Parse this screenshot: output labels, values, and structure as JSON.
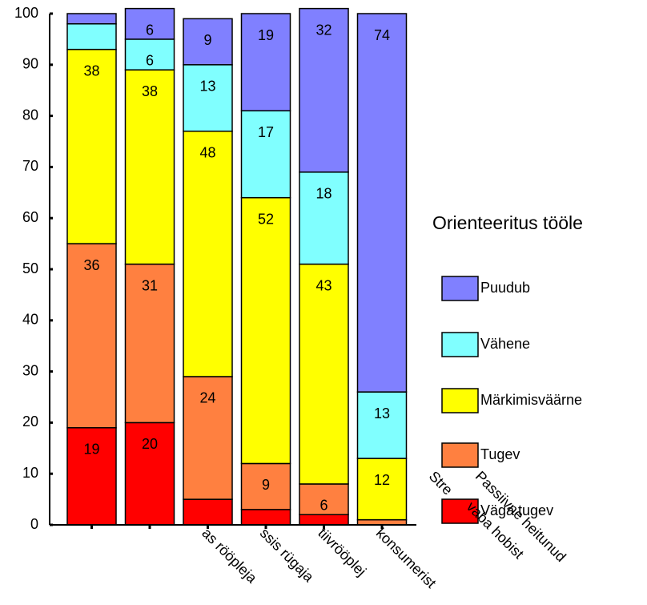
{
  "chart_data": {
    "type": "stacked_bar",
    "categories": [
      null,
      null,
      "as rööpleja",
      "ssis rügaja",
      "tiivrööplej",
      "konsumerist"
    ],
    "series": [
      {
        "name": "Väga tugev",
        "color": "#ff0000",
        "values": [
          19,
          20,
          5,
          3,
          2,
          0
        ],
        "value_labels": [
          "19",
          "20",
          null,
          null,
          null,
          null
        ]
      },
      {
        "name": "Tugev",
        "color": "#ff8040",
        "values": [
          36,
          31,
          24,
          9,
          6,
          1
        ],
        "value_labels": [
          "36",
          "31",
          "24",
          "9",
          "6",
          null
        ]
      },
      {
        "name": "Märkimisväärne",
        "color": "#ffff00",
        "values": [
          38,
          38,
          48,
          52,
          43,
          12
        ],
        "value_labels": [
          "38",
          "38",
          "48",
          "52",
          "43",
          "12"
        ]
      },
      {
        "name": "Vähene",
        "color": "#80ffff",
        "values": [
          5,
          6,
          13,
          17,
          18,
          13
        ],
        "value_labels": [
          null,
          "6",
          "13",
          "17",
          "18",
          "13"
        ]
      },
      {
        "name": "Puudub",
        "color": "#8080ff",
        "values": [
          2,
          6,
          9,
          19,
          32,
          74
        ],
        "value_labels": [
          null,
          "6",
          "9",
          "19",
          "32",
          "74"
        ]
      }
    ],
    "legend_title": "Orienteeritus tööle",
    "annotations": [
      "Stre",
      "vaba hobist",
      "Passiivne heitunud"
    ],
    "ylim": [
      0,
      100
    ],
    "yticks": [
      0,
      10,
      20,
      30,
      40,
      50,
      60,
      70,
      80,
      90,
      100
    ],
    "legend": "right"
  }
}
